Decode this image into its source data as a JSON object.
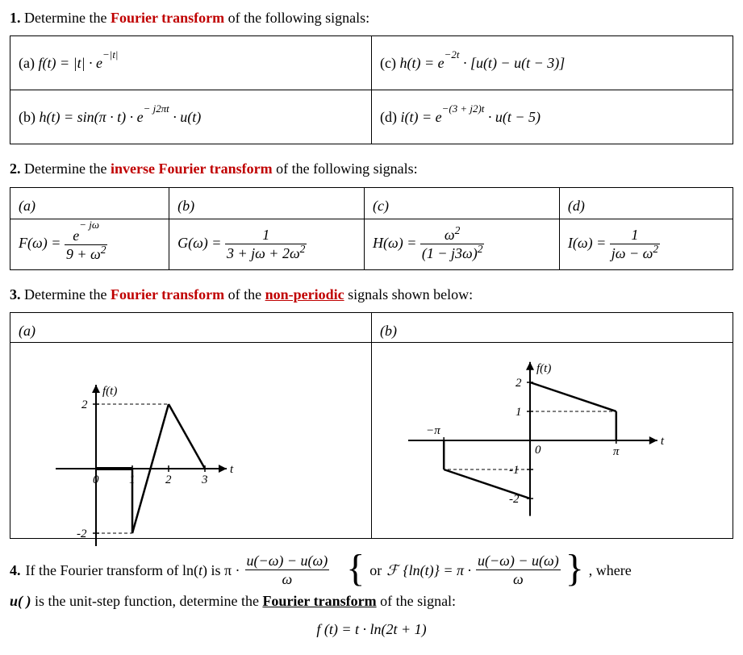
{
  "q1": {
    "heading_prefix": "1. ",
    "heading_before": "Determine the ",
    "heading_red": "Fourier transform",
    "heading_after": " of the following signals:",
    "a": {
      "label": "(a) ",
      "expr_html": "f(t) = |t| · e<span class='exp'>−|t|</span>"
    },
    "b": {
      "label": "(b) ",
      "expr_html": "h(t) = sin(π · t) · e<span class='exp'>− j2πt</span> · u(t)"
    },
    "c": {
      "label": "(c) ",
      "expr_html": "h(t) = e<span class='exp'>−2t</span> · [u(t) − u(t − 3)]"
    },
    "d": {
      "label": "(d) ",
      "expr_html": "i(t) = e<span class='exp'>−(3 + j2)t</span> · u(t − 5)"
    }
  },
  "q2": {
    "heading_prefix": "2. ",
    "heading_before": "Determine the ",
    "heading_red": "inverse Fourier transform",
    "heading_after": " of the following signals:",
    "a": {
      "label": "(a)",
      "lhs": "F(ω) = ",
      "num_html": "e<span class='exp'>− jω</span>",
      "den_html": "9 + ω<sup>2</sup>"
    },
    "b": {
      "label": "(b)",
      "lhs": "G(ω) = ",
      "num_html": "1",
      "den_html": "3 + jω + 2ω<sup>2</sup>"
    },
    "c": {
      "label": "(c)",
      "lhs": "H(ω) = ",
      "num_html": "ω<sup>2</sup>",
      "den_html": "(1 − j3ω)<sup>2</sup>"
    },
    "d": {
      "label": "(d)",
      "lhs": "I(ω) = ",
      "num_html": "1",
      "den_html": "jω − ω<sup>2</sup>"
    }
  },
  "q3": {
    "heading_prefix": "3. ",
    "heading_before": "Determine the ",
    "heading_red": "Fourier transform",
    "heading_middle": " of the ",
    "heading_red2": "non-periodic",
    "heading_after": " signals shown below:",
    "a": {
      "label": "(a)",
      "axis_label_t": "t",
      "axis_label_f": "f(t)",
      "xticks": [
        "0",
        "1",
        "2",
        "3"
      ],
      "yticks": [
        "2",
        "-2"
      ],
      "segments": [
        {
          "from": [
            0,
            0
          ],
          "to": [
            1,
            0
          ]
        },
        {
          "from": [
            1,
            0
          ],
          "to": [
            1,
            -2
          ]
        },
        {
          "from": [
            1,
            -2
          ],
          "to": [
            2,
            2
          ]
        },
        {
          "from": [
            2,
            2
          ],
          "to": [
            3,
            0
          ]
        }
      ]
    },
    "b": {
      "label": "(b)",
      "axis_label_t": "t",
      "axis_label_f": "f(t)",
      "xticks": [
        "−π",
        "0",
        "π"
      ],
      "yticks": [
        "2",
        "1",
        "-1",
        "-2"
      ],
      "pi": 3.14159,
      "segments": [
        {
          "from": [
            -3.14159,
            -1
          ],
          "to": [
            0,
            -2
          ]
        },
        {
          "from": [
            0,
            2
          ],
          "to": [
            3.14159,
            1
          ]
        },
        {
          "from": [
            3.14159,
            1
          ],
          "to": [
            3.14159,
            0
          ]
        },
        {
          "from": [
            -3.14159,
            -1
          ],
          "to": [
            -3.14159,
            0
          ]
        }
      ]
    }
  },
  "q4": {
    "heading_prefix": "4.  ",
    "text_before": "If the Fourier transform of  ln(",
    "ln_arg": "t",
    "text_mid1": ")  is  π · ",
    "frac1_num": "u(−ω) − u(ω)",
    "frac1_den": "ω",
    "or_text": "or   ",
    "scriptF": "ℱ",
    "braces_inner": "{ln(t)} = π · ",
    "frac2_num": "u(−ω) − u(ω)",
    "frac2_den": "ω",
    "tail": ", where",
    "line2_before": "u( )",
    "line2_mid": " is the unit-step function, determine the ",
    "line2_bold": "Fourier transform",
    "line2_after": " of the signal:",
    "final_eq": "f (t) = t · ln(2t + 1)"
  }
}
